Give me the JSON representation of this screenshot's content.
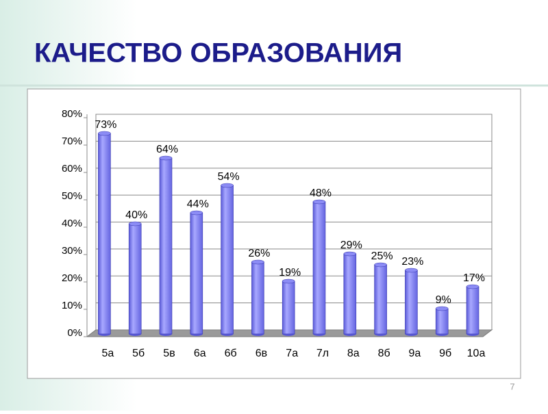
{
  "chart_data": {
    "type": "bar",
    "title": "КАЧЕСТВО ОБРАЗОВАНИЯ",
    "page_number": "7",
    "categories": [
      "5а",
      "5б",
      "5в",
      "6а",
      "6б",
      "6в",
      "7а",
      "7л",
      "8а",
      "8б",
      "9а",
      "9б",
      "10а"
    ],
    "values": [
      73,
      40,
      64,
      44,
      54,
      26,
      19,
      48,
      29,
      25,
      23,
      9,
      17
    ],
    "value_labels": [
      "73%",
      "40%",
      "64%",
      "44%",
      "54%",
      "26%",
      "19%",
      "48%",
      "29%",
      "25%",
      "23%",
      "9%",
      "17%"
    ],
    "color": "#8c8cf5",
    "ylim": [
      0,
      80
    ],
    "yticks": [
      {
        "value": 0,
        "label": "0%"
      },
      {
        "value": 10,
        "label": "10%"
      },
      {
        "value": 20,
        "label": "20%"
      },
      {
        "value": 30,
        "label": "30%"
      },
      {
        "value": 40,
        "label": "40%"
      },
      {
        "value": 50,
        "label": "50%"
      },
      {
        "value": 60,
        "label": "60%"
      },
      {
        "value": 70,
        "label": "70%"
      },
      {
        "value": 80,
        "label": "80%"
      }
    ],
    "grid": true
  }
}
